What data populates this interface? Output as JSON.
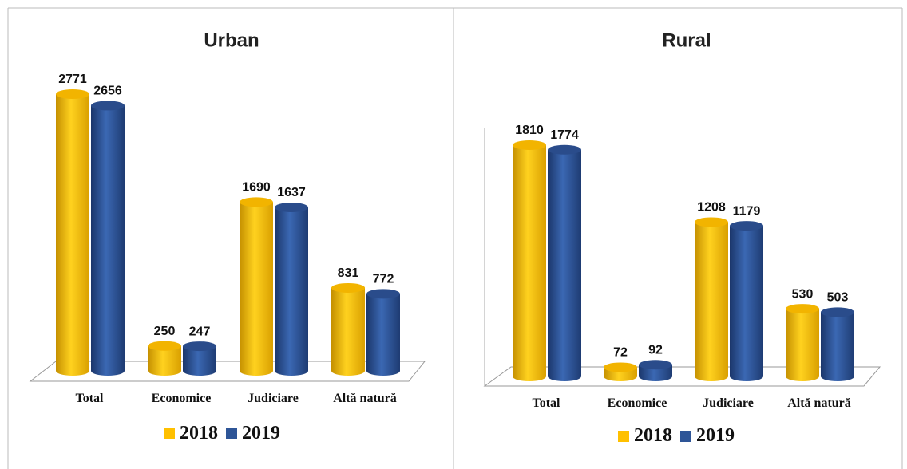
{
  "chart_data": [
    {
      "type": "bar",
      "title": "Urban",
      "categories": [
        "Total",
        "Economice",
        "Judiciare",
        "Altă natură"
      ],
      "series": [
        {
          "name": "2018",
          "color": "#ffc000",
          "values": [
            2771,
            250,
            1690,
            831
          ]
        },
        {
          "name": "2019",
          "color": "#2e5597",
          "values": [
            2656,
            247,
            1637,
            772
          ]
        }
      ]
    },
    {
      "type": "bar",
      "title": "Rural",
      "categories": [
        "Total",
        "Economice",
        "Judiciare",
        "Altă natură"
      ],
      "series": [
        {
          "name": "2018",
          "color": "#ffc000",
          "values": [
            1810,
            72,
            1208,
            530
          ]
        },
        {
          "name": "2019",
          "color": "#2e5597",
          "values": [
            1774,
            92,
            1179,
            503
          ]
        }
      ]
    }
  ]
}
